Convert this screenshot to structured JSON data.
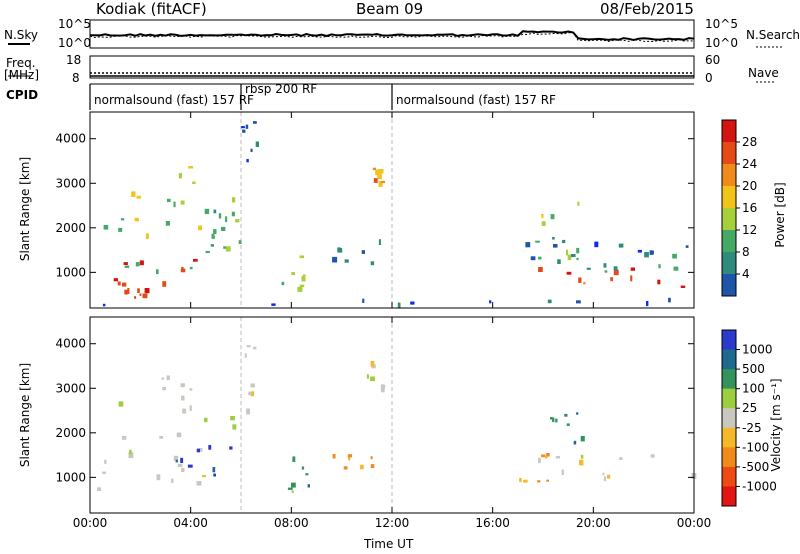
{
  "header": {
    "station": "Kodiak (fitACF)",
    "beam": "Beam 09",
    "date": "08/Feb/2015"
  },
  "left_labels": {
    "nsky": "N.Sky",
    "freq": "Freq.",
    "freq_unit": "[MHz]",
    "cpid": "CPID"
  },
  "right_labels": {
    "nsearch": "N.Search",
    "nave": "Nave"
  },
  "noise_axis": {
    "left_top": "10^5",
    "left_bottom": "10^0",
    "right_top": "10^5",
    "right_bottom": "10^0"
  },
  "freq_axis": {
    "left_top": "18",
    "left_bottom": "8",
    "right_top": "60",
    "right_bottom": "0"
  },
  "cpid_segments": [
    {
      "label": "normalsound (fast) 157 RF",
      "start_hour": 0
    },
    {
      "label": "rbsp 200 RF",
      "start_hour": 6
    },
    {
      "label": "normalsound (fast) 157 RF",
      "start_hour": 12
    }
  ],
  "colors": {
    "power": [
      "#0a2cf0",
      "#1e55a8",
      "#2f8c7c",
      "#45a864",
      "#a6cf3a",
      "#f2c31a",
      "#f08a1c",
      "#e44a16",
      "#d41410"
    ],
    "velocity": [
      "#e21414",
      "#ee4a14",
      "#f08a1c",
      "#f5b82a",
      "#c8c8c0",
      "#9ccf40",
      "#33935a",
      "#1e6a8c",
      "#2a3acc"
    ]
  },
  "chart_data": [
    {
      "type": "heatmap",
      "panel": "power",
      "ylabel": "Slant Range [km]",
      "yticks": [
        "1000",
        "2000",
        "3000",
        "4000"
      ],
      "ylim": [
        200,
        4600
      ],
      "xlim": [
        0,
        24
      ],
      "colorbar_label": "Power [dB]",
      "colorbar_ticks": [
        "4",
        "8",
        "12",
        "16",
        "20",
        "24",
        "28"
      ],
      "colorbar_range": [
        0,
        30
      ],
      "regions": [
        {
          "t0": 0.3,
          "t1": 5.5,
          "r0": 700,
          "r1": 1300,
          "level": 27
        },
        {
          "t0": 0.6,
          "t1": 2.2,
          "r0": 350,
          "r1": 650,
          "level": 26
        },
        {
          "t0": 0.4,
          "t1": 5.8,
          "r0": 1000,
          "r1": 2200,
          "level": 14
        },
        {
          "t0": 1.5,
          "t1": 5.8,
          "r0": 1800,
          "r1": 3500,
          "level": 15
        },
        {
          "t0": 4.5,
          "t1": 6.4,
          "r0": 1600,
          "r1": 2400,
          "level": 10
        },
        {
          "t0": 6.0,
          "t1": 6.6,
          "r0": 3000,
          "r1": 4500,
          "level": 6
        },
        {
          "t0": 7.2,
          "t1": 8.6,
          "r0": 600,
          "r1": 1500,
          "level": 13
        },
        {
          "t0": 9.6,
          "t1": 11.5,
          "r0": 1100,
          "r1": 1700,
          "level": 6
        },
        {
          "t0": 11.1,
          "t1": 11.6,
          "r0": 2800,
          "r1": 3700,
          "level": 20
        },
        {
          "t0": 17.0,
          "t1": 24.0,
          "r0": 650,
          "r1": 1100,
          "level": 26
        },
        {
          "t0": 17.0,
          "t1": 24.0,
          "r0": 1000,
          "r1": 1500,
          "level": 10
        },
        {
          "t0": 17.5,
          "t1": 20.0,
          "r0": 1300,
          "r1": 2700,
          "level": 14
        },
        {
          "t0": 17.0,
          "t1": 24.0,
          "r0": 1300,
          "r1": 2000,
          "level": 5
        },
        {
          "t0": 0.0,
          "t1": 24.0,
          "r0": 250,
          "r1": 400,
          "level": 4
        }
      ]
    },
    {
      "type": "heatmap",
      "panel": "velocity",
      "ylabel": "Slant Range [km]",
      "yticks": [
        "1000",
        "2000",
        "3000",
        "4000"
      ],
      "ylim": [
        200,
        4600
      ],
      "xlim": [
        0,
        24
      ],
      "xticks": [
        "00:00",
        "04:00",
        "08:00",
        "12:00",
        "16:00",
        "20:00",
        "00:00"
      ],
      "xlabel": "Time UT",
      "colorbar_label": "Velocity [m s⁻¹]",
      "colorbar_ticks": [
        "1000",
        "500",
        "100",
        "25",
        "-25",
        "-100",
        "-500",
        "-1000"
      ],
      "regions": [
        {
          "t0": 0.2,
          "t1": 5.5,
          "r0": 700,
          "r1": 1500,
          "level": "gray"
        },
        {
          "t0": 1.0,
          "t1": 6.0,
          "r0": 1500,
          "r1": 3400,
          "level": "gray"
        },
        {
          "t0": 3.4,
          "t1": 5.6,
          "r0": 1000,
          "r1": 1700,
          "level": "blue"
        },
        {
          "t0": 6.0,
          "t1": 6.5,
          "r0": 2000,
          "r1": 4400,
          "level": "gray"
        },
        {
          "t0": 7.2,
          "t1": 8.7,
          "r0": 600,
          "r1": 1500,
          "level": "green"
        },
        {
          "t0": 9.5,
          "t1": 11.3,
          "r0": 1200,
          "r1": 1500,
          "level": "orange"
        },
        {
          "t0": 11.0,
          "t1": 11.6,
          "r0": 2800,
          "r1": 3700,
          "level": "gray"
        },
        {
          "t0": 17.0,
          "t1": 18.2,
          "r0": 900,
          "r1": 1600,
          "level": "orange"
        },
        {
          "t0": 17.5,
          "t1": 24.0,
          "r0": 750,
          "r1": 1500,
          "level": "gray"
        },
        {
          "t0": 17.8,
          "t1": 19.5,
          "r0": 1700,
          "r1": 2700,
          "level": "green"
        }
      ]
    }
  ]
}
